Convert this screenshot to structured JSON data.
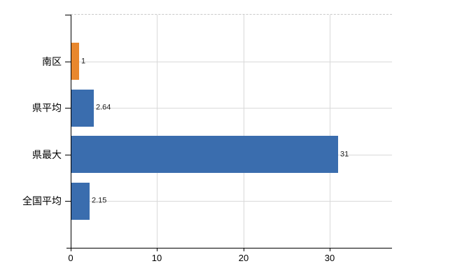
{
  "chart_data": {
    "type": "bar",
    "orientation": "horizontal",
    "title": "",
    "xlabel": "",
    "ylabel": "",
    "categories": [
      "南区",
      "県平均",
      "県最大",
      "全国平均"
    ],
    "values": [
      1,
      2.64,
      31,
      2.15
    ],
    "value_labels": [
      "1",
      "2.64",
      "31",
      "2.15"
    ],
    "bar_colors": [
      "#e8872d",
      "#3a6dae",
      "#3a6dae",
      "#3a6dae"
    ],
    "x_ticks": [
      0,
      10,
      20,
      30
    ],
    "x_tick_labels": [
      "0",
      "10",
      "20",
      "30"
    ],
    "xlim": [
      0,
      37.2
    ],
    "grid": true,
    "legend": false,
    "colors": {
      "background": "#ffffff",
      "grid": "#d9d9d9",
      "plot_top_border": "#c9c9c9",
      "axis": "#000000",
      "tick": "#000000",
      "category_label_text": "#000000",
      "value_label_text": "#222222",
      "tick_label_text": "#000000",
      "bar_orange": "#e8872d",
      "bar_blue": "#3a6dae"
    }
  }
}
